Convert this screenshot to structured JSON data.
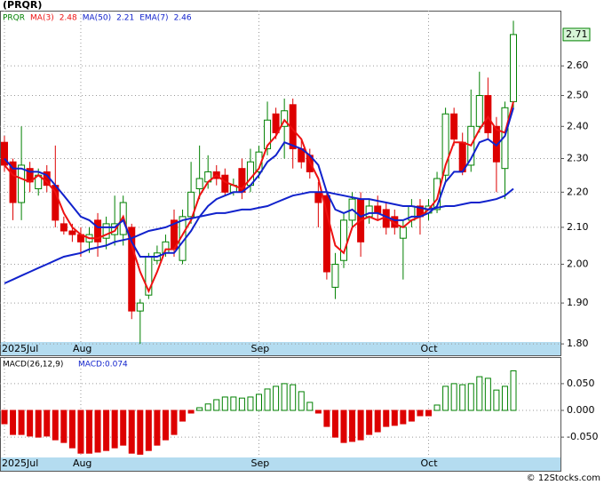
{
  "chart_data": [
    {
      "type": "candlestick",
      "title": "(PRQR)",
      "symbol": "PRQR",
      "categories": [
        "2025Jul",
        null,
        null,
        null,
        null,
        null,
        null,
        null,
        null,
        "Aug",
        null,
        null,
        null,
        null,
        null,
        null,
        null,
        null,
        null,
        null,
        null,
        null,
        null,
        null,
        null,
        null,
        null,
        null,
        null,
        null,
        "Sep",
        null,
        null,
        null,
        null,
        null,
        null,
        null,
        null,
        null,
        null,
        null,
        null,
        null,
        null,
        null,
        null,
        null,
        null,
        null,
        "Oct",
        null,
        null,
        null,
        null,
        null,
        null,
        null,
        null,
        null,
        null
      ],
      "open": [
        2.35,
        2.29,
        2.17,
        2.27,
        2.21,
        2.26,
        2.22,
        2.11,
        2.09,
        2.08,
        2.06,
        2.12,
        2.07,
        2.08,
        2.08,
        2.1,
        1.88,
        1.92,
        2.01,
        2.03,
        2.12,
        2.01,
        2.13,
        2.21,
        2.23,
        2.26,
        2.25,
        2.2,
        2.27,
        2.22,
        2.26,
        2.33,
        2.44,
        2.4,
        2.47,
        2.33,
        2.31,
        2.2,
        2.19,
        1.94,
        2.01,
        2.12,
        2.18,
        2.13,
        2.16,
        2.15,
        2.13,
        2.07,
        2.12,
        2.16,
        2.14,
        2.15,
        2.25,
        2.44,
        2.35,
        2.28,
        2.4,
        2.5,
        2.4,
        2.27,
        2.48
      ],
      "high": [
        2.37,
        2.3,
        2.4,
        2.29,
        2.27,
        2.28,
        2.34,
        2.13,
        2.11,
        2.1,
        2.1,
        2.14,
        2.13,
        2.19,
        2.19,
        2.11,
        1.91,
        2.03,
        2.05,
        2.08,
        2.15,
        2.15,
        2.29,
        2.34,
        2.31,
        2.28,
        2.27,
        2.24,
        2.3,
        2.33,
        2.34,
        2.48,
        2.46,
        2.49,
        2.49,
        2.36,
        2.33,
        2.23,
        2.2,
        2.03,
        2.14,
        2.2,
        2.2,
        2.18,
        2.19,
        2.17,
        2.15,
        2.12,
        2.18,
        2.18,
        2.18,
        2.26,
        2.46,
        2.46,
        2.38,
        2.52,
        2.58,
        2.56,
        2.43,
        2.48,
        2.76
      ],
      "low": [
        2.26,
        2.12,
        2.12,
        2.2,
        2.19,
        2.2,
        2.1,
        2.08,
        2.06,
        2.02,
        2.03,
        2.02,
        2.04,
        2.05,
        2.05,
        1.86,
        1.8,
        1.91,
        2.0,
        2.02,
        2.02,
        2.0,
        2.11,
        2.18,
        2.21,
        2.22,
        2.19,
        2.19,
        2.18,
        2.2,
        2.24,
        2.31,
        2.36,
        2.3,
        2.27,
        2.27,
        2.24,
        2.1,
        1.96,
        1.91,
        1.99,
        2.1,
        2.02,
        2.11,
        2.12,
        2.08,
        2.08,
        1.96,
        2.1,
        2.08,
        2.12,
        2.14,
        2.23,
        2.34,
        2.25,
        2.26,
        2.38,
        2.36,
        2.2,
        2.18,
        2.46
      ],
      "close": [
        2.28,
        2.17,
        2.28,
        2.23,
        2.25,
        2.22,
        2.12,
        2.09,
        2.08,
        2.06,
        2.08,
        2.06,
        2.11,
        2.11,
        2.17,
        1.88,
        1.9,
        2.02,
        2.03,
        2.06,
        2.04,
        2.13,
        2.2,
        2.24,
        2.26,
        2.24,
        2.2,
        2.22,
        2.2,
        2.29,
        2.32,
        2.42,
        2.38,
        2.45,
        2.33,
        2.29,
        2.26,
        2.17,
        1.98,
        2.0,
        2.12,
        2.18,
        2.06,
        2.16,
        2.14,
        2.1,
        2.1,
        2.1,
        2.16,
        2.13,
        2.16,
        2.24,
        2.44,
        2.36,
        2.26,
        2.4,
        2.5,
        2.38,
        2.29,
        2.46,
        2.71
      ],
      "up_color": "#008000",
      "down_color": "#dd0000",
      "last_price": 2.71,
      "yscale": "log",
      "grid": true,
      "ylim": [
        1.773,
        2.797
      ],
      "yticks": [
        {
          "value": 1.8,
          "label": "1.80"
        },
        {
          "value": 1.9,
          "label": "1.90"
        },
        {
          "value": 2.0,
          "label": "2.00"
        },
        {
          "value": 2.1,
          "label": "2.10"
        },
        {
          "value": 2.2,
          "label": "2.20"
        },
        {
          "value": 2.3,
          "label": "2.30"
        },
        {
          "value": 2.4,
          "label": "2.40"
        },
        {
          "value": 2.5,
          "label": "2.50"
        },
        {
          "value": 2.6,
          "label": "2.60"
        }
      ],
      "series": [
        {
          "name": "MA(3)",
          "color": "#ee1111",
          "legend_value": 2.48,
          "values": [
            2.28,
            2.25,
            2.24,
            2.23,
            2.25,
            2.23,
            2.2,
            2.14,
            2.1,
            2.08,
            2.07,
            2.07,
            2.08,
            2.09,
            2.13,
            2.05,
            1.98,
            1.93,
            1.98,
            2.04,
            2.04,
            2.08,
            2.12,
            2.19,
            2.23,
            2.25,
            2.23,
            2.22,
            2.21,
            2.24,
            2.27,
            2.34,
            2.37,
            2.42,
            2.39,
            2.36,
            2.29,
            2.24,
            2.14,
            2.05,
            2.03,
            2.1,
            2.12,
            2.13,
            2.12,
            2.13,
            2.11,
            2.1,
            2.12,
            2.13,
            2.15,
            2.18,
            2.28,
            2.35,
            2.35,
            2.34,
            2.39,
            2.43,
            2.39,
            2.38,
            2.48
          ]
        },
        {
          "name": "MA(50)",
          "color": "#1122cc",
          "legend_value": 2.21,
          "values": [
            1.95,
            1.96,
            1.97,
            1.98,
            1.99,
            2.0,
            2.01,
            2.02,
            2.025,
            2.03,
            2.04,
            2.045,
            2.05,
            2.06,
            2.065,
            2.07,
            2.08,
            2.09,
            2.095,
            2.1,
            2.11,
            2.12,
            2.125,
            2.13,
            2.135,
            2.14,
            2.14,
            2.145,
            2.15,
            2.15,
            2.155,
            2.16,
            2.17,
            2.18,
            2.19,
            2.195,
            2.2,
            2.2,
            2.2,
            2.195,
            2.19,
            2.185,
            2.18,
            2.18,
            2.175,
            2.17,
            2.165,
            2.16,
            2.16,
            2.155,
            2.15,
            2.155,
            2.16,
            2.16,
            2.165,
            2.17,
            2.17,
            2.175,
            2.18,
            2.19,
            2.21
          ]
        },
        {
          "name": "EMA(7)",
          "color": "#1122cc",
          "legend_value": 2.46,
          "values": [
            2.3,
            2.27,
            2.27,
            2.26,
            2.26,
            2.25,
            2.22,
            2.19,
            2.16,
            2.13,
            2.12,
            2.1,
            2.1,
            2.1,
            2.12,
            2.06,
            2.02,
            2.02,
            2.02,
            2.03,
            2.03,
            2.06,
            2.09,
            2.13,
            2.16,
            2.18,
            2.19,
            2.2,
            2.2,
            2.22,
            2.25,
            2.29,
            2.31,
            2.35,
            2.34,
            2.33,
            2.31,
            2.28,
            2.2,
            2.15,
            2.14,
            2.15,
            2.13,
            2.14,
            2.14,
            2.13,
            2.12,
            2.12,
            2.13,
            2.13,
            2.14,
            2.16,
            2.23,
            2.26,
            2.26,
            2.3,
            2.35,
            2.36,
            2.34,
            2.37,
            2.46
          ]
        }
      ]
    },
    {
      "type": "bar",
      "title": "MACD(26,12,9)",
      "legend_label": "MACD:0.074",
      "up_color": "#008000",
      "down_color": "#dd0000",
      "grid": true,
      "values": [
        -0.025,
        -0.045,
        -0.045,
        -0.048,
        -0.05,
        -0.048,
        -0.055,
        -0.06,
        -0.07,
        -0.08,
        -0.08,
        -0.078,
        -0.075,
        -0.07,
        -0.065,
        -0.08,
        -0.082,
        -0.075,
        -0.065,
        -0.055,
        -0.045,
        -0.02,
        -0.005,
        0.005,
        0.012,
        0.02,
        0.025,
        0.025,
        0.023,
        0.025,
        0.03,
        0.04,
        0.045,
        0.05,
        0.048,
        0.035,
        0.015,
        -0.005,
        -0.03,
        -0.05,
        -0.06,
        -0.058,
        -0.055,
        -0.045,
        -0.04,
        -0.03,
        -0.028,
        -0.025,
        -0.02,
        -0.01,
        -0.01,
        0.01,
        0.045,
        0.05,
        0.048,
        0.05,
        0.063,
        0.06,
        0.038,
        0.045,
        0.074
      ],
      "ylim": [
        -0.088,
        0.098
      ],
      "yticks": [
        {
          "value": -0.05,
          "label": "-0.050"
        },
        {
          "value": 0,
          "label": "0.000"
        },
        {
          "value": 0.05,
          "label": "0.050"
        }
      ]
    }
  ],
  "footer": "© 12Stocks.com"
}
